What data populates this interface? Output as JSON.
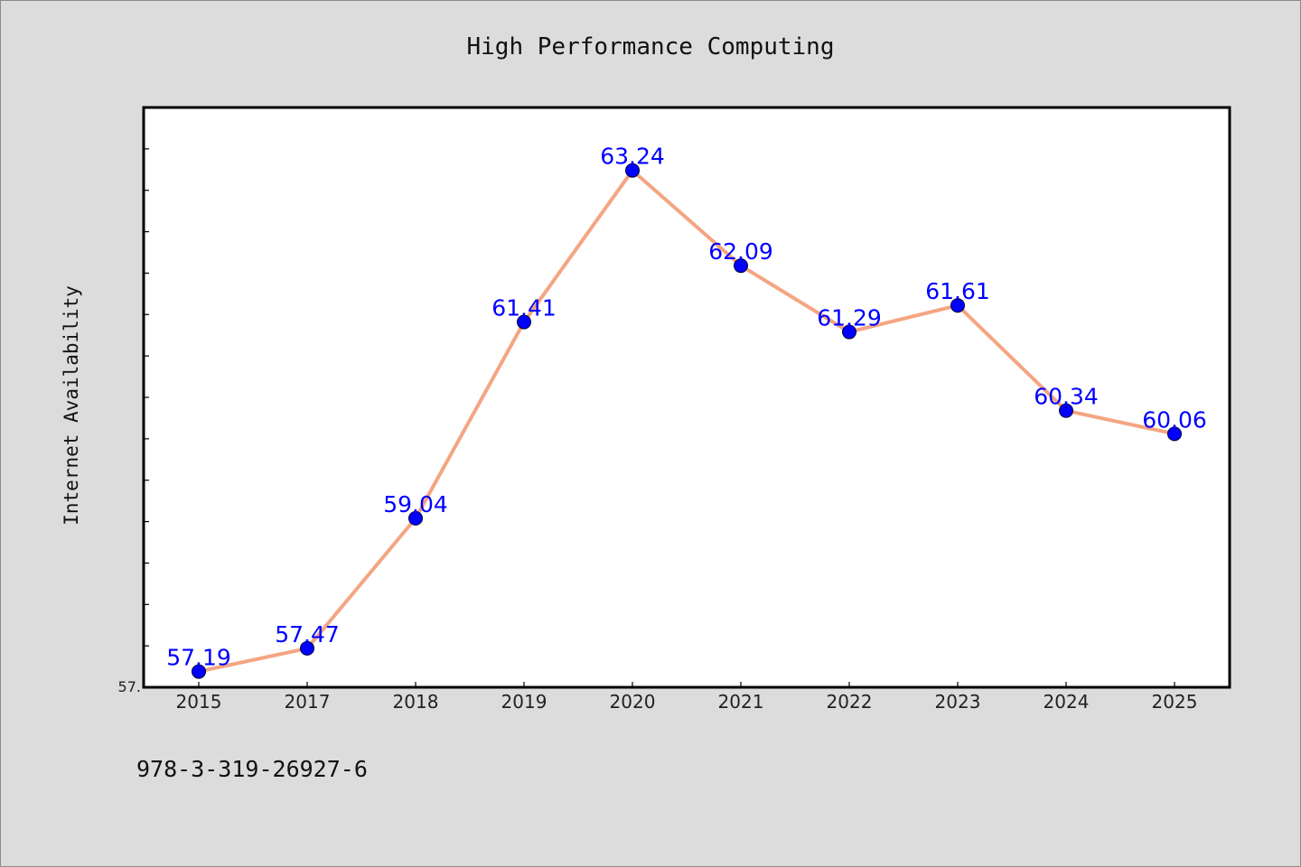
{
  "chart_data": {
    "type": "line",
    "title": "High Performance Computing",
    "xlabel": "",
    "ylabel": "Internet Availability",
    "categories": [
      "2015",
      "2017",
      "2018",
      "2019",
      "2020",
      "2021",
      "2022",
      "2023",
      "2024",
      "2025"
    ],
    "series": [
      {
        "values": [
          57.19,
          57.47,
          59.04,
          61.41,
          63.24,
          62.09,
          61.29,
          61.61,
          60.34,
          60.06
        ],
        "line_color": "#f4a582",
        "marker_color": "#0000ff"
      }
    ],
    "data_labels": [
      "57.19",
      "57.47",
      "59.04",
      "61.41",
      "63.24",
      "62.09",
      "61.29",
      "61.61",
      "60.34",
      "60.06"
    ],
    "ylim": [
      57.0,
      64.0
    ],
    "y_tick_labels": [
      "57."
    ],
    "grid": false,
    "legend": "none"
  },
  "footer_text": "978-3-319-26927-6"
}
